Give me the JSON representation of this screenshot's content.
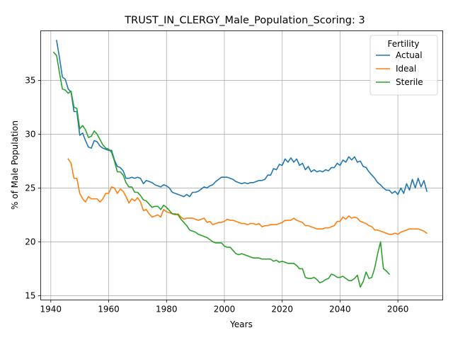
{
  "chart_data": {
    "type": "line",
    "title": "TRUST_IN_CLERGY_Male_Population_Scoring: 3",
    "xlabel": "Years",
    "ylabel": "% of Male Population",
    "xlim": [
      1936.5,
      2075.5
    ],
    "ylim": [
      14.6,
      39.6
    ],
    "xticks": [
      1940,
      1960,
      1980,
      2000,
      2020,
      2040,
      2060
    ],
    "yticks": [
      15,
      20,
      25,
      30,
      35
    ],
    "grid": true,
    "legend": {
      "title": "Fertility",
      "placement": "top-right"
    },
    "series": [
      {
        "name": "Actual",
        "color": "#1f77b4",
        "x": [
          1942,
          1943,
          1944,
          1945,
          1946,
          1947,
          1948,
          1949,
          1950,
          1951,
          1952,
          1953,
          1954,
          1955,
          1956,
          1957,
          1958,
          1959,
          1960,
          1961,
          1962,
          1963,
          1964,
          1965,
          1966,
          1967,
          1968,
          1969,
          1970,
          1971,
          1972,
          1973,
          1974,
          1975,
          1976,
          1977,
          1978,
          1979,
          1980,
          1981,
          1982,
          1983,
          1984,
          1985,
          1986,
          1987,
          1988,
          1989,
          1990,
          1991,
          1992,
          1993,
          1994,
          1995,
          1996,
          1997,
          1998,
          1999,
          2000,
          2001,
          2002,
          2003,
          2004,
          2005,
          2006,
          2007,
          2008,
          2009,
          2010,
          2011,
          2012,
          2013,
          2014,
          2015,
          2016,
          2017,
          2018,
          2019,
          2020,
          2021,
          2022,
          2023,
          2024,
          2025,
          2026,
          2027,
          2028,
          2029,
          2030,
          2031,
          2032,
          2033,
          2034,
          2035,
          2036,
          2037,
          2038,
          2039,
          2040,
          2041,
          2042,
          2043,
          2044,
          2045,
          2046,
          2047,
          2048,
          2049,
          2050,
          2051,
          2052,
          2053,
          2054,
          2055,
          2056,
          2057,
          2058,
          2059,
          2060,
          2061,
          2062,
          2063,
          2064,
          2065,
          2066,
          2067,
          2068,
          2069,
          2070
        ],
        "values": [
          38.7,
          37.1,
          35.3,
          35.1,
          34.2,
          33.9,
          32.1,
          32.1,
          29.9,
          30.1,
          29.4,
          28.8,
          28.7,
          29.4,
          29.3,
          28.9,
          28.7,
          28.6,
          28.5,
          28.5,
          27.6,
          27.0,
          26.9,
          26.6,
          25.9,
          25.9,
          26.0,
          25.9,
          26.0,
          25.9,
          25.4,
          25.7,
          25.6,
          25.5,
          25.3,
          25.2,
          25.1,
          25.3,
          25.2,
          25.0,
          24.6,
          24.5,
          24.4,
          24.3,
          24.2,
          24.4,
          24.2,
          24.6,
          24.6,
          24.7,
          24.9,
          25.1,
          25.0,
          25.2,
          25.3,
          25.6,
          25.8,
          26.0,
          26.0,
          26.0,
          25.9,
          25.8,
          25.6,
          25.5,
          25.4,
          25.5,
          25.4,
          25.5,
          25.5,
          25.6,
          25.7,
          25.7,
          25.8,
          26.2,
          26.2,
          26.8,
          26.7,
          27.2,
          27.1,
          27.7,
          27.4,
          27.8,
          27.4,
          27.7,
          27.1,
          27.3,
          26.7,
          27.0,
          26.5,
          26.7,
          26.5,
          26.6,
          26.5,
          26.7,
          26.6,
          26.9,
          26.9,
          27.3,
          27.1,
          27.6,
          27.4,
          27.9,
          27.6,
          27.9,
          27.4,
          27.5,
          27.0,
          26.9,
          26.5,
          26.2,
          25.9,
          25.5,
          25.3,
          25.0,
          24.8,
          24.8,
          24.5,
          24.7,
          24.4,
          25.0,
          24.5,
          25.4,
          24.8,
          25.8,
          25.0,
          25.9,
          25.1,
          25.7,
          24.7
        ]
      },
      {
        "name": "Ideal",
        "color": "#ff7f0e",
        "x": [
          1946,
          1947,
          1948,
          1949,
          1950,
          1951,
          1952,
          1953,
          1954,
          1955,
          1956,
          1957,
          1958,
          1959,
          1960,
          1961,
          1962,
          1963,
          1964,
          1965,
          1966,
          1967,
          1968,
          1969,
          1970,
          1971,
          1972,
          1973,
          1974,
          1975,
          1976,
          1977,
          1978,
          1979,
          1980,
          1981,
          1982,
          1983,
          1984,
          1985,
          1986,
          1987,
          1988,
          1989,
          1990,
          1991,
          1992,
          1993,
          1994,
          1995,
          1996,
          1997,
          1998,
          1999,
          2000,
          2001,
          2002,
          2003,
          2004,
          2005,
          2006,
          2007,
          2008,
          2009,
          2010,
          2011,
          2012,
          2013,
          2014,
          2015,
          2016,
          2017,
          2018,
          2019,
          2020,
          2021,
          2022,
          2023,
          2024,
          2025,
          2026,
          2027,
          2028,
          2029,
          2030,
          2031,
          2032,
          2033,
          2034,
          2035,
          2036,
          2037,
          2038,
          2039,
          2040,
          2041,
          2042,
          2043,
          2044,
          2045,
          2046,
          2047,
          2048,
          2049,
          2050,
          2051,
          2052,
          2053,
          2054,
          2055,
          2056,
          2057,
          2058,
          2059,
          2060,
          2061,
          2062,
          2063,
          2064,
          2065,
          2066,
          2067,
          2068,
          2069,
          2070
        ],
        "values": [
          27.7,
          27.3,
          25.9,
          25.9,
          24.5,
          24.0,
          23.7,
          24.2,
          24.0,
          24.0,
          24.0,
          23.7,
          24.0,
          24.5,
          24.5,
          25.1,
          25.0,
          24.5,
          24.9,
          24.7,
          24.2,
          23.6,
          24.0,
          23.8,
          24.1,
          23.7,
          22.9,
          23.0,
          22.6,
          22.3,
          22.4,
          22.5,
          22.3,
          23.0,
          22.8,
          22.7,
          22.6,
          22.5,
          22.6,
          22.3,
          22.1,
          22.2,
          22.2,
          22.2,
          22.1,
          22.0,
          22.1,
          22.2,
          21.8,
          21.9,
          21.6,
          21.7,
          21.8,
          21.8,
          21.9,
          22.1,
          22.0,
          22.0,
          21.9,
          21.8,
          21.7,
          21.7,
          21.6,
          21.7,
          21.7,
          21.6,
          21.7,
          21.4,
          21.5,
          21.5,
          21.6,
          21.6,
          21.6,
          21.7,
          21.8,
          22.0,
          22.0,
          22.0,
          22.2,
          22.0,
          21.9,
          21.8,
          21.5,
          21.5,
          21.4,
          21.3,
          21.2,
          21.2,
          21.2,
          21.3,
          21.3,
          21.4,
          21.5,
          21.9,
          21.9,
          22.3,
          22.1,
          22.4,
          22.2,
          22.3,
          22.2,
          21.9,
          21.8,
          21.7,
          21.5,
          21.4,
          21.1,
          21.1,
          21.0,
          20.9,
          20.8,
          20.7,
          20.7,
          20.8,
          20.7,
          20.9,
          21.0,
          21.1,
          21.2,
          21.2,
          21.2,
          21.2,
          21.1,
          21.0,
          20.8
        ]
      },
      {
        "name": "Sterile",
        "color": "#2ca02c",
        "x": [
          1941,
          1942,
          1943,
          1944,
          1945,
          1946,
          1947,
          1948,
          1949,
          1950,
          1951,
          1952,
          1953,
          1954,
          1955,
          1956,
          1957,
          1958,
          1959,
          1960,
          1961,
          1962,
          1963,
          1964,
          1965,
          1966,
          1967,
          1968,
          1969,
          1970,
          1971,
          1972,
          1973,
          1974,
          1975,
          1976,
          1977,
          1978,
          1979,
          1980,
          1981,
          1982,
          1983,
          1984,
          1985,
          1986,
          1987,
          1988,
          1989,
          1990,
          1991,
          1992,
          1993,
          1994,
          1995,
          1996,
          1997,
          1998,
          1999,
          2000,
          2001,
          2002,
          2003,
          2004,
          2005,
          2006,
          2007,
          2008,
          2009,
          2010,
          2011,
          2012,
          2013,
          2014,
          2015,
          2016,
          2017,
          2018,
          2019,
          2020,
          2021,
          2022,
          2023,
          2024,
          2025,
          2026,
          2027,
          2028,
          2029,
          2030,
          2031,
          2032,
          2033,
          2034,
          2035,
          2036,
          2037,
          2038,
          2039,
          2040,
          2041,
          2042,
          2043,
          2044,
          2045,
          2046,
          2047,
          2048,
          2049,
          2050,
          2051,
          2052,
          2053,
          2054,
          2055,
          2056,
          2057
        ],
        "values": [
          37.6,
          37.3,
          35.7,
          34.2,
          34.1,
          33.8,
          34.0,
          32.5,
          32.4,
          30.5,
          30.8,
          30.4,
          29.7,
          29.8,
          30.3,
          30.0,
          29.5,
          29.0,
          28.7,
          28.6,
          28.3,
          27.5,
          26.5,
          26.5,
          26.2,
          25.5,
          25.1,
          25.1,
          24.6,
          24.6,
          24.3,
          23.9,
          23.8,
          23.5,
          23.2,
          23.3,
          23.3,
          23.0,
          23.4,
          23.2,
          22.9,
          22.6,
          22.6,
          22.5,
          22.1,
          21.8,
          21.5,
          21.1,
          21.0,
          20.9,
          20.7,
          20.6,
          20.5,
          20.4,
          20.2,
          20.0,
          19.9,
          19.9,
          19.9,
          19.6,
          19.5,
          19.5,
          19.2,
          18.9,
          18.8,
          18.9,
          18.8,
          18.7,
          18.6,
          18.5,
          18.5,
          18.5,
          18.4,
          18.4,
          18.4,
          18.4,
          18.2,
          18.3,
          18.1,
          18.2,
          18.1,
          18.0,
          18.0,
          18.0,
          17.8,
          17.5,
          17.5,
          16.7,
          16.6,
          16.6,
          16.7,
          16.5,
          16.2,
          16.3,
          16.5,
          16.6,
          17.0,
          16.9,
          16.7,
          16.7,
          16.8,
          16.6,
          16.4,
          16.4,
          16.6,
          16.9,
          15.8,
          16.3,
          17.2,
          16.6,
          16.7,
          17.6,
          18.9,
          20.0,
          17.5,
          17.3,
          17.0
        ]
      }
    ]
  }
}
